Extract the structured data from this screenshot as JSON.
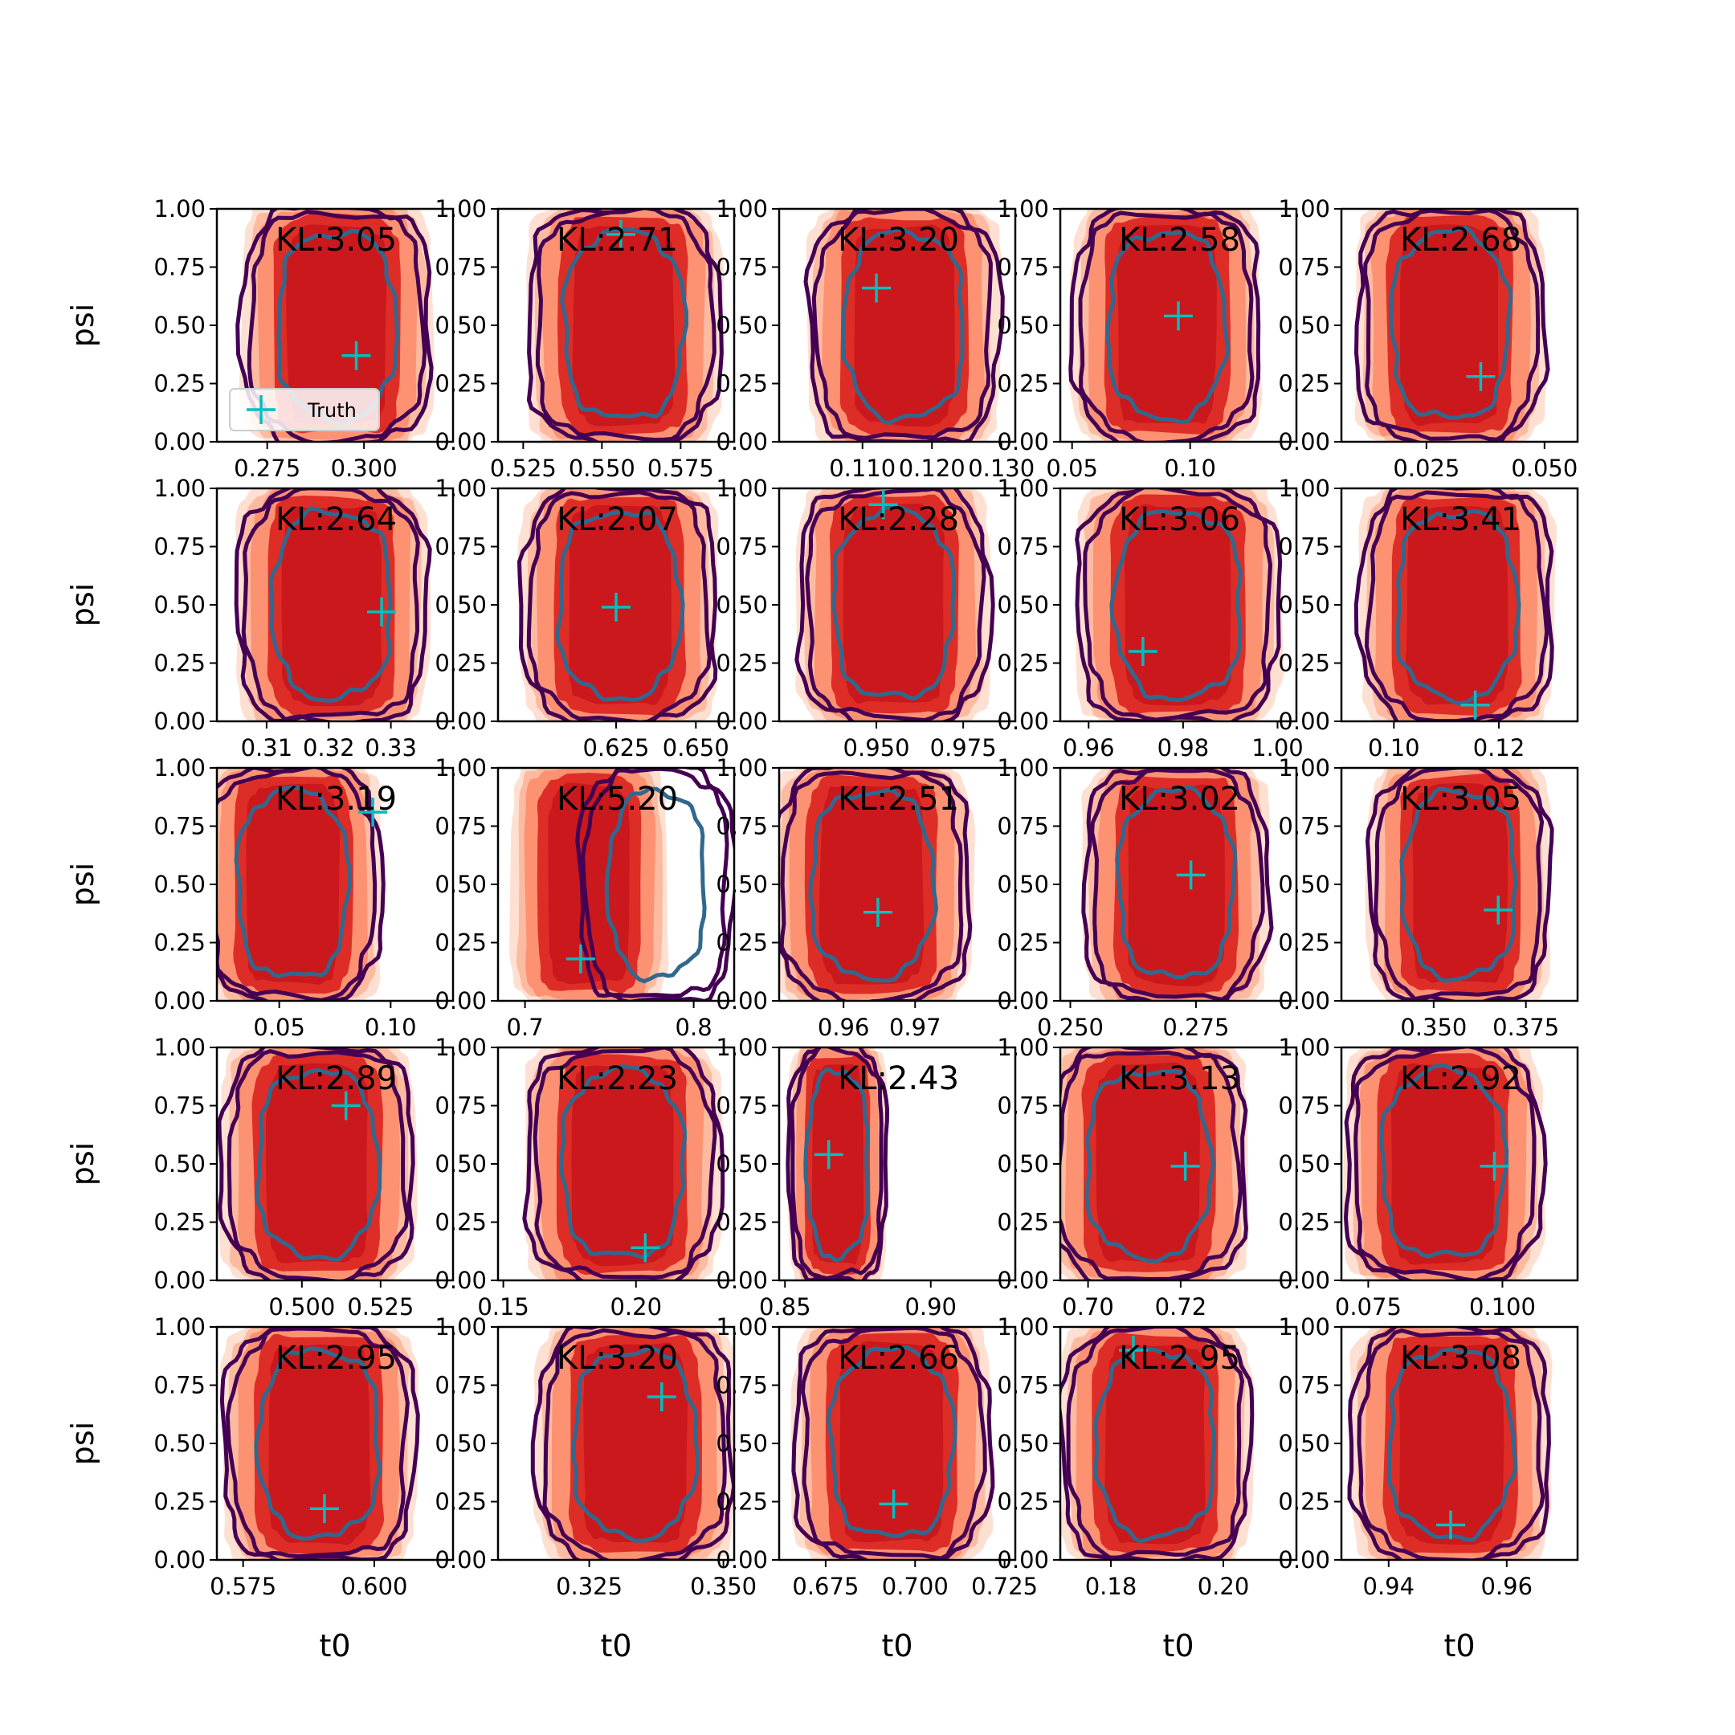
{
  "chart_data": {
    "type": "contour",
    "layout": "5x5 grid of 2D posterior density panels",
    "xlabel": "t0",
    "ylabel": "psi",
    "ylim": [
      0,
      1
    ],
    "y_ticks": [
      "0.00",
      "0.25",
      "0.50",
      "0.75",
      "1.00"
    ],
    "legend": {
      "label": "Truth",
      "location": "lower-left",
      "panel": 0
    },
    "colors": {
      "fill_dark": "#cb181d",
      "fill_mid": "#de2d26",
      "fill_light": "#fc9272",
      "fill_pale": "#fcbba1",
      "fill_faint": "#fee0d2",
      "contour_inner": "#31688e",
      "contour_outer": "#440154",
      "truth": "#00bfbf"
    },
    "panels": [
      {
        "kl": "KL:3.05",
        "xlim": [
          0.262,
          0.323
        ],
        "xticks": [
          {
            "v": 0.275,
            "l": "0.275"
          },
          {
            "v": 0.3,
            "l": "0.300"
          }
        ],
        "center": 0.293,
        "width": 0.016,
        "truth": [
          0.298,
          0.37
        ]
      },
      {
        "kl": "KL:2.71",
        "xlim": [
          0.517,
          0.592
        ],
        "xticks": [
          {
            "v": 0.525,
            "l": "0.525"
          },
          {
            "v": 0.55,
            "l": "0.550"
          },
          {
            "v": 0.575,
            "l": "0.575"
          }
        ],
        "center": 0.557,
        "width": 0.02,
        "truth": [
          0.556,
          0.89
        ]
      },
      {
        "kl": "KL:3.20",
        "xlim": [
          0.098,
          0.132
        ],
        "xticks": [
          {
            "v": 0.11,
            "l": "0.110"
          },
          {
            "v": 0.12,
            "l": "0.120"
          },
          {
            "v": 0.13,
            "l": "0.130"
          }
        ],
        "center": 0.116,
        "width": 0.009,
        "truth": [
          0.112,
          0.66
        ]
      },
      {
        "kl": "KL:2.58",
        "xlim": [
          0.045,
          0.145
        ],
        "xticks": [
          {
            "v": 0.05,
            "l": "0.05"
          },
          {
            "v": 0.1,
            "l": "0.10"
          }
        ],
        "center": 0.09,
        "width": 0.026,
        "truth": [
          0.095,
          0.54
        ]
      },
      {
        "kl": "KL:2.68",
        "xlim": [
          0.007,
          0.057
        ],
        "xticks": [
          {
            "v": 0.025,
            "l": "0.025"
          },
          {
            "v": 0.05,
            "l": "0.050"
          }
        ],
        "center": 0.03,
        "width": 0.013,
        "truth": [
          0.0365,
          0.28
        ]
      },
      {
        "kl": "KL:2.64",
        "xlim": [
          0.302,
          0.34
        ],
        "xticks": [
          {
            "v": 0.31,
            "l": "0.31"
          },
          {
            "v": 0.32,
            "l": "0.32"
          },
          {
            "v": 0.33,
            "l": "0.33"
          }
        ],
        "center": 0.3205,
        "width": 0.01,
        "truth": [
          0.3285,
          0.47
        ]
      },
      {
        "kl": "KL:2.07",
        "xlim": [
          0.588,
          0.662
        ],
        "xticks": [
          {
            "v": 0.625,
            "l": "0.625"
          },
          {
            "v": 0.65,
            "l": "0.650"
          }
        ],
        "center": 0.626,
        "width": 0.02,
        "truth": [
          0.625,
          0.49
        ]
      },
      {
        "kl": "KL:2.28",
        "xlim": [
          0.922,
          0.99
        ],
        "xticks": [
          {
            "v": 0.95,
            "l": "0.950"
          },
          {
            "v": 0.975,
            "l": "0.975"
          }
        ],
        "center": 0.955,
        "width": 0.018,
        "truth": [
          0.952,
          0.93
        ]
      },
      {
        "kl": "KL:3.06",
        "xlim": [
          0.954,
          1.004
        ],
        "xticks": [
          {
            "v": 0.96,
            "l": "0.96"
          },
          {
            "v": 0.98,
            "l": "0.98"
          },
          {
            "v": 1.0,
            "l": "1.00"
          }
        ],
        "center": 0.979,
        "width": 0.014,
        "truth": [
          0.9715,
          0.3
        ]
      },
      {
        "kl": "KL:3.41",
        "xlim": [
          0.09,
          0.135
        ],
        "xticks": [
          {
            "v": 0.1,
            "l": "0.10"
          },
          {
            "v": 0.12,
            "l": "0.12"
          }
        ],
        "center": 0.112,
        "width": 0.012,
        "truth": [
          0.1155,
          0.07
        ]
      },
      {
        "kl": "KL:3.19",
        "xlim": [
          0.022,
          0.128
        ],
        "xticks": [
          {
            "v": 0.05,
            "l": "0.05"
          },
          {
            "v": 0.1,
            "l": "0.10"
          }
        ],
        "center": 0.056,
        "width": 0.026,
        "truth": [
          0.092,
          0.81
        ]
      },
      {
        "kl": "KL:5.20",
        "xlim": [
          0.684,
          0.824
        ],
        "xticks": [
          {
            "v": 0.7,
            "l": "0.7"
          },
          {
            "v": 0.8,
            "l": "0.8"
          }
        ],
        "center": 0.778,
        "width": 0.03,
        "fill_center": 0.738,
        "truth": [
          0.733,
          0.18
        ]
      },
      {
        "kl": "KL:2.51",
        "xlim": [
          0.951,
          0.984
        ],
        "xticks": [
          {
            "v": 0.96,
            "l": "0.96"
          },
          {
            "v": 0.97,
            "l": "0.97"
          }
        ],
        "center": 0.964,
        "width": 0.009,
        "truth": [
          0.9648,
          0.38
        ]
      },
      {
        "kl": "KL:3.02",
        "xlim": [
          0.248,
          0.295
        ],
        "xticks": [
          {
            "v": 0.25,
            "l": "0.250"
          },
          {
            "v": 0.275,
            "l": "0.275"
          }
        ],
        "center": 0.271,
        "width": 0.012,
        "truth": [
          0.274,
          0.54
        ]
      },
      {
        "kl": "KL:3.05",
        "xlim": [
          0.325,
          0.389
        ],
        "xticks": [
          {
            "v": 0.35,
            "l": "0.350"
          },
          {
            "v": 0.375,
            "l": "0.375"
          }
        ],
        "center": 0.357,
        "width": 0.016,
        "truth": [
          0.3675,
          0.39
        ]
      },
      {
        "kl": "KL:2.89",
        "xlim": [
          0.473,
          0.548
        ],
        "xticks": [
          {
            "v": 0.5,
            "l": "0.500"
          },
          {
            "v": 0.525,
            "l": "0.525"
          }
        ],
        "center": 0.505,
        "width": 0.02,
        "truth": [
          0.514,
          0.75
        ]
      },
      {
        "kl": "KL:2.23",
        "xlim": [
          0.148,
          0.237
        ],
        "xticks": [
          {
            "v": 0.15,
            "l": "0.15"
          },
          {
            "v": 0.2,
            "l": "0.20"
          }
        ],
        "center": 0.195,
        "width": 0.024,
        "truth": [
          0.2035,
          0.14
        ]
      },
      {
        "kl": "KL:2.43",
        "xlim": [
          0.848,
          0.929
        ],
        "xticks": [
          {
            "v": 0.85,
            "l": "0.85"
          },
          {
            "v": 0.9,
            "l": "0.90"
          }
        ],
        "center": 0.868,
        "width": 0.011,
        "truth": [
          0.865,
          0.54
        ]
      },
      {
        "kl": "KL:3.13",
        "xlim": [
          0.694,
          0.745
        ],
        "xticks": [
          {
            "v": 0.7,
            "l": "0.70"
          },
          {
            "v": 0.72,
            "l": "0.72"
          }
        ],
        "center": 0.713,
        "width": 0.014,
        "truth": [
          0.721,
          0.49
        ]
      },
      {
        "kl": "KL:2.92",
        "xlim": [
          0.07,
          0.114
        ],
        "xticks": [
          {
            "v": 0.075,
            "l": "0.075"
          },
          {
            "v": 0.1,
            "l": "0.100"
          }
        ],
        "center": 0.089,
        "width": 0.012,
        "truth": [
          0.0985,
          0.49
        ]
      },
      {
        "kl": "KL:2.95",
        "xlim": [
          0.57,
          0.615
        ],
        "xticks": [
          {
            "v": 0.575,
            "l": "0.575"
          },
          {
            "v": 0.6,
            "l": "0.600"
          }
        ],
        "center": 0.5895,
        "width": 0.012,
        "truth": [
          0.5905,
          0.22
        ]
      },
      {
        "kl": "KL:3.20",
        "xlim": [
          0.308,
          0.352
        ],
        "xticks": [
          {
            "v": 0.325,
            "l": "0.325"
          },
          {
            "v": 0.35,
            "l": "0.350"
          }
        ],
        "center": 0.3335,
        "width": 0.012,
        "truth": [
          0.3385,
          0.7
        ]
      },
      {
        "kl": "KL:2.66",
        "xlim": [
          0.662,
          0.728
        ],
        "xticks": [
          {
            "v": 0.675,
            "l": "0.675"
          },
          {
            "v": 0.7,
            "l": "0.700"
          },
          {
            "v": 0.725,
            "l": "0.725"
          }
        ],
        "center": 0.6935,
        "width": 0.018,
        "truth": [
          0.694,
          0.24
        ]
      },
      {
        "kl": "KL:2.95",
        "xlim": [
          0.171,
          0.213
        ],
        "xticks": [
          {
            "v": 0.18,
            "l": "0.18"
          },
          {
            "v": 0.2,
            "l": "0.20"
          }
        ],
        "center": 0.188,
        "width": 0.011,
        "truth": [
          0.184,
          0.9
        ]
      },
      {
        "kl": "KL:3.08",
        "xlim": [
          0.932,
          0.972
        ],
        "xticks": [
          {
            "v": 0.94,
            "l": "0.94"
          },
          {
            "v": 0.96,
            "l": "0.96"
          }
        ],
        "center": 0.9505,
        "width": 0.011,
        "truth": [
          0.9505,
          0.15
        ]
      }
    ]
  }
}
